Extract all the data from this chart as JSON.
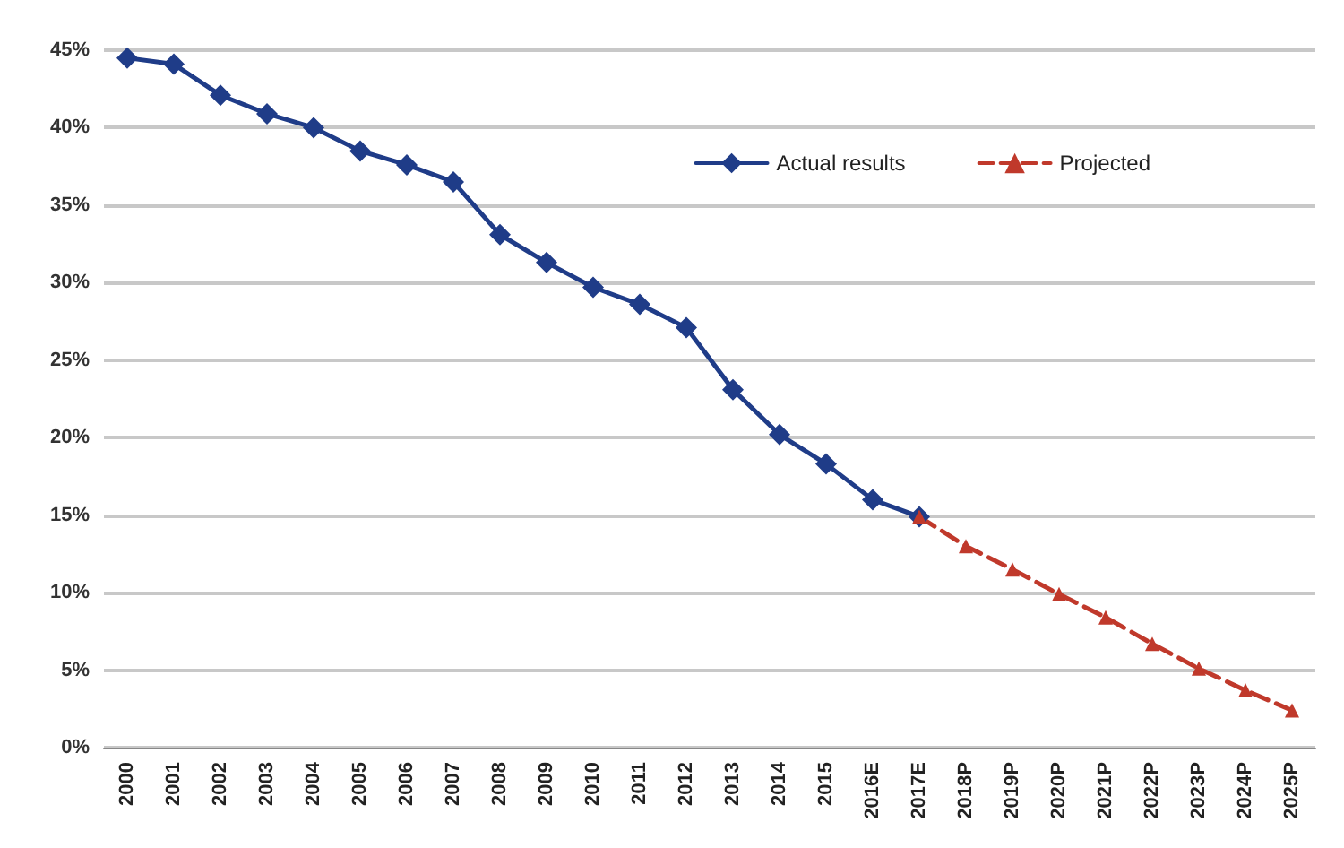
{
  "chart_data": {
    "type": "line",
    "categories": [
      "2000",
      "2001",
      "2002",
      "2003",
      "2004",
      "2005",
      "2006",
      "2007",
      "2008",
      "2009",
      "2010",
      "2011",
      "2012",
      "2013",
      "2014",
      "2015",
      "2016E",
      "2017E",
      "2018P",
      "2019P",
      "2020P",
      "2021P",
      "2022P",
      "2023P",
      "2024P",
      "2025P"
    ],
    "series": [
      {
        "name": "Actual results",
        "color": "#1f3c88",
        "marker": "diamond",
        "line_style": "solid",
        "values": [
          44.5,
          44.1,
          42.1,
          40.9,
          40.0,
          38.5,
          37.6,
          36.5,
          33.1,
          31.3,
          29.7,
          28.6,
          27.1,
          23.1,
          20.2,
          18.3,
          16.0,
          14.9,
          null,
          null,
          null,
          null,
          null,
          null,
          null,
          null
        ]
      },
      {
        "name": "Projected",
        "color": "#c0392b",
        "marker": "triangle",
        "line_style": "dashed",
        "values": [
          null,
          null,
          null,
          null,
          null,
          null,
          null,
          null,
          null,
          null,
          null,
          null,
          null,
          null,
          null,
          null,
          null,
          14.9,
          13.0,
          11.5,
          9.9,
          8.4,
          6.7,
          5.1,
          3.7,
          2.4
        ]
      }
    ],
    "ylim": [
      0,
      45
    ],
    "yticks": [
      {
        "value": 0,
        "label": "0%"
      },
      {
        "value": 5,
        "label": "5%"
      },
      {
        "value": 10,
        "label": "10%"
      },
      {
        "value": 15,
        "label": "15%"
      },
      {
        "value": 20,
        "label": "20%"
      },
      {
        "value": 25,
        "label": "25%"
      },
      {
        "value": 30,
        "label": "30%"
      },
      {
        "value": 35,
        "label": "35%"
      },
      {
        "value": 40,
        "label": "40%"
      },
      {
        "value": 45,
        "label": "45%"
      }
    ],
    "grid": "y",
    "legend": "top right"
  }
}
